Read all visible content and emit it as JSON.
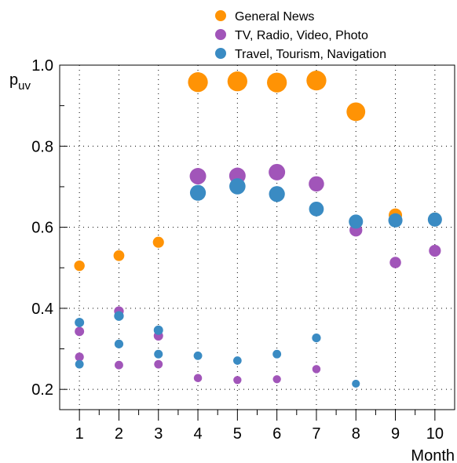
{
  "chart_data": {
    "type": "scatter",
    "title": "",
    "xlabel": "Month",
    "ylabel_main": "p",
    "ylabel_sub": "uv",
    "xlim": [
      0.5,
      10.5
    ],
    "ylim": [
      0.15,
      1.0
    ],
    "x_ticks": [
      1,
      2,
      3,
      4,
      5,
      6,
      7,
      8,
      9,
      10
    ],
    "y_ticks": [
      0.2,
      0.4,
      0.6,
      0.8,
      1.0
    ],
    "y_tick_labels": [
      "0.2",
      "0.4",
      "0.6",
      "0.8",
      "1.0"
    ],
    "grid": true,
    "legend_position": "top",
    "series": [
      {
        "name": "General News",
        "color": "#ff9305",
        "points": [
          {
            "x": 1,
            "y": 0.505,
            "size": 0.3
          },
          {
            "x": 2,
            "y": 0.53,
            "size": 0.32
          },
          {
            "x": 3,
            "y": 0.563,
            "size": 0.34
          },
          {
            "x": 4,
            "y": 0.958,
            "size": 0.96
          },
          {
            "x": 5,
            "y": 0.96,
            "size": 0.96
          },
          {
            "x": 6,
            "y": 0.957,
            "size": 0.96
          },
          {
            "x": 7,
            "y": 0.962,
            "size": 0.96
          },
          {
            "x": 8,
            "y": 0.885,
            "size": 0.88
          },
          {
            "x": 9,
            "y": 0.63,
            "size": 0.5
          },
          {
            "x": 10,
            "y": 0.62,
            "size": 0.5
          }
        ]
      },
      {
        "name": "TV, Radio, Video, Photo",
        "color": "#a155b9",
        "points": [
          {
            "x": 1,
            "y": 0.343,
            "size": 0.22
          },
          {
            "x": 1,
            "y": 0.28,
            "size": 0.18
          },
          {
            "x": 2,
            "y": 0.393,
            "size": 0.24
          },
          {
            "x": 2,
            "y": 0.26,
            "size": 0.16
          },
          {
            "x": 3,
            "y": 0.332,
            "size": 0.22
          },
          {
            "x": 3,
            "y": 0.262,
            "size": 0.16
          },
          {
            "x": 4,
            "y": 0.726,
            "size": 0.72
          },
          {
            "x": 4,
            "y": 0.228,
            "size": 0.14
          },
          {
            "x": 5,
            "y": 0.727,
            "size": 0.72
          },
          {
            "x": 5,
            "y": 0.223,
            "size": 0.13
          },
          {
            "x": 6,
            "y": 0.736,
            "size": 0.72
          },
          {
            "x": 6,
            "y": 0.225,
            "size": 0.13
          },
          {
            "x": 7,
            "y": 0.707,
            "size": 0.64
          },
          {
            "x": 7,
            "y": 0.25,
            "size": 0.14
          },
          {
            "x": 8,
            "y": 0.593,
            "size": 0.46
          },
          {
            "x": 9,
            "y": 0.513,
            "size": 0.36
          },
          {
            "x": 10,
            "y": 0.542,
            "size": 0.4
          }
        ]
      },
      {
        "name": "Travel, Tourism, Navigation",
        "color": "#3a8bc3",
        "points": [
          {
            "x": 1,
            "y": 0.365,
            "size": 0.22
          },
          {
            "x": 1,
            "y": 0.262,
            "size": 0.16
          },
          {
            "x": 2,
            "y": 0.381,
            "size": 0.24
          },
          {
            "x": 2,
            "y": 0.312,
            "size": 0.18
          },
          {
            "x": 3,
            "y": 0.346,
            "size": 0.22
          },
          {
            "x": 3,
            "y": 0.287,
            "size": 0.17
          },
          {
            "x": 4,
            "y": 0.685,
            "size": 0.68
          },
          {
            "x": 4,
            "y": 0.283,
            "size": 0.16
          },
          {
            "x": 5,
            "y": 0.701,
            "size": 0.7
          },
          {
            "x": 5,
            "y": 0.271,
            "size": 0.15
          },
          {
            "x": 6,
            "y": 0.682,
            "size": 0.68
          },
          {
            "x": 6,
            "y": 0.287,
            "size": 0.16
          },
          {
            "x": 7,
            "y": 0.645,
            "size": 0.6
          },
          {
            "x": 7,
            "y": 0.327,
            "size": 0.18
          },
          {
            "x": 8,
            "y": 0.614,
            "size": 0.56
          },
          {
            "x": 8,
            "y": 0.214,
            "size": 0.12
          },
          {
            "x": 9,
            "y": 0.617,
            "size": 0.56
          },
          {
            "x": 10,
            "y": 0.619,
            "size": 0.56
          }
        ]
      }
    ]
  }
}
